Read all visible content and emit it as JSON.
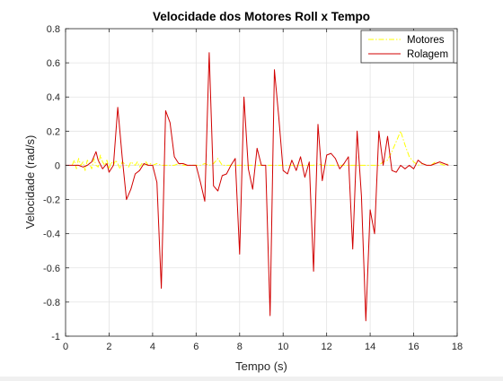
{
  "chart_data": {
    "type": "line",
    "title": "Velocidade dos Motores Roll x Tempo",
    "xlabel": "Tempo (s)",
    "ylabel": "Velocidade (rad/s)",
    "xlim": [
      0,
      18
    ],
    "ylim": [
      -1,
      0.8
    ],
    "xticks": [
      0,
      2,
      4,
      6,
      8,
      10,
      12,
      14,
      16,
      18
    ],
    "yticks": [
      -1,
      -0.8,
      -0.6,
      -0.4,
      -0.2,
      0,
      0.2,
      0.4,
      0.6,
      0.8
    ],
    "xtick_labels": [
      "0",
      "2",
      "4",
      "6",
      "8",
      "10",
      "12",
      "14",
      "16",
      "18"
    ],
    "ytick_labels": [
      "-1",
      "-0.8",
      "-0.6",
      "-0.4",
      "-0.2",
      "0",
      "0.2",
      "0.4",
      "0.6",
      "0.8"
    ],
    "grid": true,
    "legend_position": "top-right",
    "series": [
      {
        "name": "Motores",
        "color": "#ffff00",
        "style": "dashdot",
        "x": [
          0.3,
          0.4,
          0.5,
          0.6,
          0.7,
          0.8,
          0.9,
          1.0,
          1.1,
          1.2,
          1.3,
          1.4,
          1.5,
          1.6,
          1.7,
          1.8,
          1.9,
          2.0,
          2.1,
          2.2,
          2.3,
          2.4,
          2.5,
          2.6,
          2.7,
          2.8,
          2.9,
          3.0,
          3.1,
          3.2,
          3.3,
          3.4,
          3.5,
          3.6,
          3.7,
          3.8,
          3.9,
          4.0,
          4.2,
          4.4,
          4.6,
          4.8,
          5.0,
          5.2,
          5.4,
          5.6,
          5.8,
          6.0,
          6.2,
          6.4,
          6.6,
          6.8,
          7.0,
          7.2,
          7.4,
          7.6,
          7.8,
          8.0,
          8.2,
          8.4,
          8.6,
          8.8,
          9.0,
          9.2,
          9.4,
          9.6,
          9.8,
          10.0,
          10.2,
          10.4,
          10.6,
          10.8,
          11.0,
          11.2,
          11.4,
          11.6,
          11.8,
          12.0,
          12.2,
          12.4,
          12.6,
          12.8,
          13.0,
          13.2,
          13.4,
          13.6,
          13.8,
          14.0,
          14.2,
          14.4,
          14.6,
          14.8,
          15.0,
          15.2,
          15.4,
          15.6,
          15.8,
          16.0,
          16.2,
          16.4,
          16.6,
          16.8,
          17.0,
          17.2,
          17.4,
          17.6
        ],
        "y": [
          0.0,
          0.03,
          -0.02,
          0.04,
          0.0,
          0.02,
          -0.03,
          0.03,
          0.01,
          -0.02,
          0.04,
          0.0,
          -0.01,
          0.06,
          0.02,
          0.0,
          0.03,
          -0.02,
          0.02,
          0.0,
          0.03,
          0.01,
          -0.02,
          0.02,
          0.01,
          0.0,
          -0.01,
          0.02,
          0.01,
          0.0,
          0.02,
          -0.01,
          0.01,
          0.0,
          0.02,
          0.0,
          0.01,
          0.0,
          0.01,
          0.0,
          0.0,
          0.0,
          0.0,
          0.01,
          0.0,
          0.0,
          0.0,
          0.0,
          0.0,
          0.01,
          0.0,
          0.01,
          0.04,
          0.0,
          0.0,
          0.0,
          0.0,
          0.0,
          0.0,
          0.0,
          0.0,
          0.0,
          0.0,
          0.0,
          0.0,
          0.0,
          0.0,
          0.0,
          0.0,
          0.0,
          0.0,
          0.0,
          0.0,
          0.0,
          0.0,
          0.01,
          0.0,
          0.0,
          0.0,
          0.0,
          0.0,
          0.0,
          0.0,
          0.0,
          0.0,
          0.0,
          0.0,
          0.0,
          0.0,
          0.0,
          0.02,
          0.03,
          0.08,
          0.14,
          0.2,
          0.12,
          0.05,
          0.02,
          0.0,
          0.01,
          0.0,
          0.0,
          0.02,
          0.01,
          0.0,
          0.01
        ]
      },
      {
        "name": "Rolagem",
        "color": "#d10000",
        "style": "solid",
        "x": [
          0.0,
          0.2,
          0.4,
          0.6,
          0.8,
          1.0,
          1.2,
          1.4,
          1.5,
          1.7,
          1.9,
          2.0,
          2.2,
          2.4,
          2.6,
          2.8,
          3.0,
          3.2,
          3.4,
          3.6,
          3.8,
          4.0,
          4.2,
          4.4,
          4.6,
          4.8,
          5.0,
          5.2,
          5.4,
          5.6,
          5.8,
          6.0,
          6.2,
          6.4,
          6.6,
          6.8,
          7.0,
          7.2,
          7.4,
          7.6,
          7.8,
          8.0,
          8.2,
          8.4,
          8.6,
          8.8,
          9.0,
          9.2,
          9.4,
          9.6,
          9.8,
          10.0,
          10.2,
          10.4,
          10.6,
          10.8,
          11.0,
          11.2,
          11.4,
          11.6,
          11.8,
          12.0,
          12.2,
          12.4,
          12.6,
          12.8,
          13.0,
          13.2,
          13.4,
          13.6,
          13.8,
          14.0,
          14.2,
          14.4,
          14.6,
          14.8,
          15.0,
          15.2,
          15.4,
          15.6,
          15.8,
          16.0,
          16.2,
          16.4,
          16.6,
          16.8,
          17.0,
          17.2,
          17.4,
          17.6
        ],
        "y": [
          0.0,
          0.0,
          0.0,
          0.0,
          -0.01,
          0.0,
          0.02,
          0.08,
          0.03,
          -0.02,
          0.01,
          -0.04,
          0.0,
          0.34,
          0.05,
          -0.2,
          -0.14,
          -0.05,
          -0.03,
          0.01,
          0.0,
          0.0,
          -0.1,
          -0.72,
          0.32,
          0.25,
          0.05,
          0.01,
          0.01,
          0.0,
          0.0,
          0.0,
          -0.1,
          -0.21,
          0.66,
          -0.12,
          -0.15,
          -0.06,
          -0.05,
          0.0,
          0.04,
          -0.52,
          0.4,
          -0.02,
          -0.14,
          0.1,
          0.0,
          0.0,
          -0.88,
          0.56,
          0.28,
          -0.03,
          -0.05,
          0.03,
          -0.03,
          0.05,
          -0.07,
          0.02,
          -0.62,
          0.24,
          -0.09,
          0.06,
          0.07,
          0.04,
          -0.02,
          0.01,
          0.05,
          -0.49,
          0.2,
          -0.18,
          -0.91,
          -0.26,
          -0.4,
          0.2,
          0.0,
          0.17,
          -0.03,
          -0.04,
          0.0,
          -0.02,
          0.0,
          -0.02,
          0.03,
          0.01,
          0.0,
          0.0,
          0.01,
          0.02,
          0.01,
          0.0
        ]
      }
    ]
  }
}
